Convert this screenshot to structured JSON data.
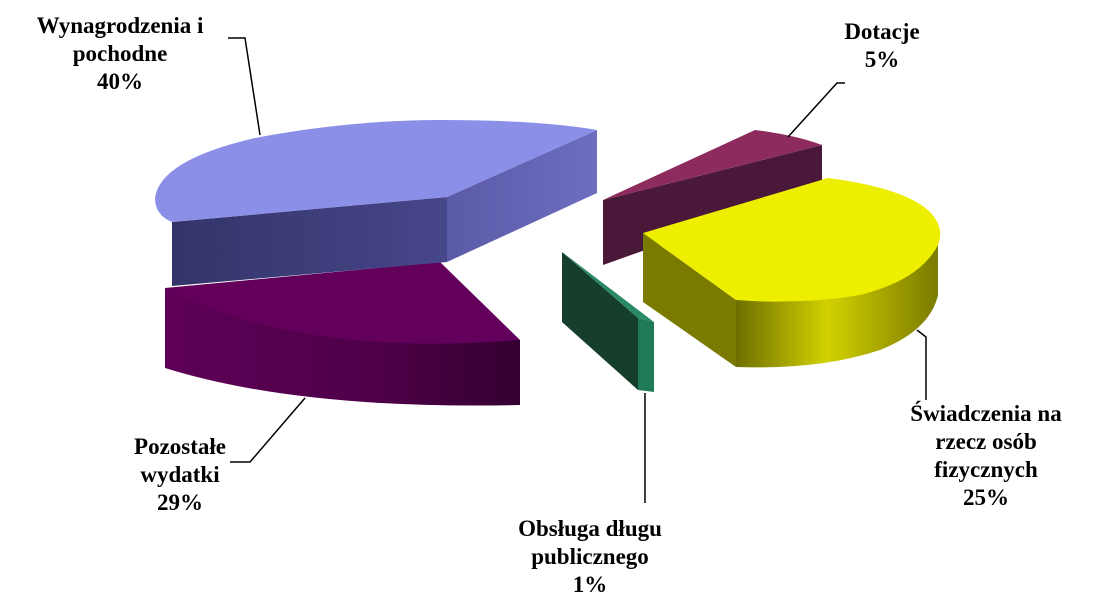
{
  "chart_data": {
    "type": "pie",
    "title": "",
    "style": "3d-exploded",
    "slices": [
      {
        "lines": [
          "Wynagrodzenia i",
          "pochodne"
        ],
        "pct": "40%",
        "value": 40,
        "color": "#8B8FE8"
      },
      {
        "lines": [
          "Dotacje"
        ],
        "pct": "5%",
        "value": 5,
        "color": "#8E2B5E"
      },
      {
        "lines": [
          "Świadczenia na",
          "rzecz osób",
          "fizycznych"
        ],
        "pct": "25%",
        "value": 25,
        "color": "#EEEE00"
      },
      {
        "lines": [
          "Obsługa długu",
          "publicznego"
        ],
        "pct": "1%",
        "value": 1,
        "color": "#1E7A5A"
      },
      {
        "lines": [
          "Pozostałe",
          "wydatki"
        ],
        "pct": "29%",
        "value": 29,
        "color": "#5E0057"
      }
    ]
  }
}
